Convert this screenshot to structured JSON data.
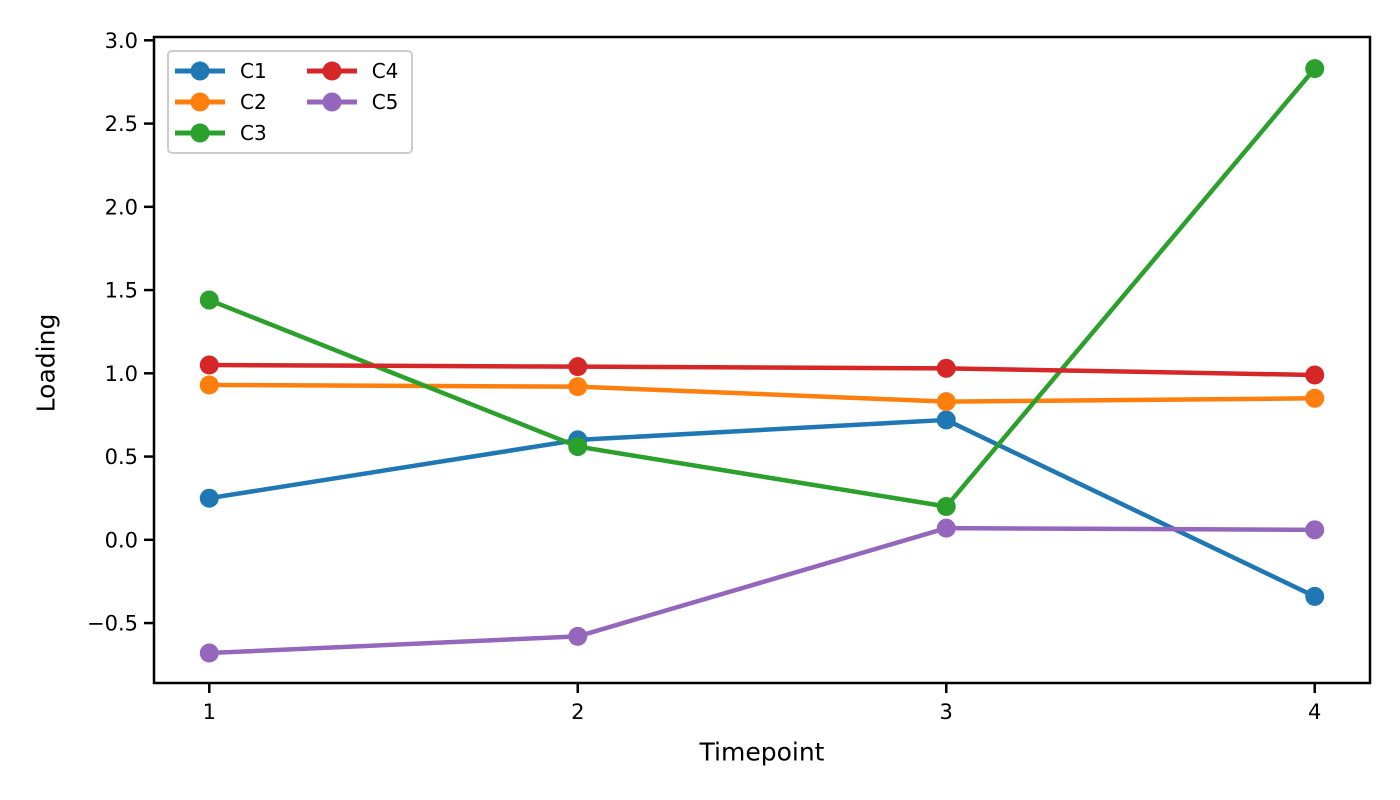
{
  "chart_data": {
    "type": "line",
    "title": "",
    "xlabel": "Timepoint",
    "ylabel": "Loading",
    "x": [
      1,
      2,
      3,
      4
    ],
    "xtick_values": [
      1,
      2,
      3,
      4
    ],
    "xtick_labels": [
      "1",
      "2",
      "3",
      "4"
    ],
    "ytick_values": [
      3.0,
      2.5,
      2.0,
      1.5,
      1.0,
      0.5,
      0.0,
      -0.5
    ],
    "ytick_labels": [
      "3.0",
      "2.5",
      "2.0",
      "1.5",
      "1.0",
      "0.5",
      "0.0",
      "−0.5"
    ],
    "xlim": [
      0.85,
      4.15
    ],
    "ylim": [
      -0.86,
      3.02
    ],
    "grid": false,
    "marker": "circle",
    "legend": {
      "position": "upper-left",
      "columns": 2,
      "fill_order": "column-major"
    },
    "series": [
      {
        "name": "C1",
        "color": "#1f77b4",
        "values": [
          0.25,
          0.6,
          0.72,
          -0.34
        ]
      },
      {
        "name": "C2",
        "color": "#ff7f0e",
        "values": [
          0.93,
          0.92,
          0.83,
          0.85
        ]
      },
      {
        "name": "C3",
        "color": "#2ca02c",
        "values": [
          1.44,
          0.56,
          0.2,
          2.83
        ]
      },
      {
        "name": "C4",
        "color": "#d62728",
        "values": [
          1.05,
          1.04,
          1.03,
          0.99
        ]
      },
      {
        "name": "C5",
        "color": "#9467bd",
        "values": [
          -0.68,
          -0.58,
          0.07,
          0.06
        ]
      }
    ]
  },
  "colors": {
    "background": "#ffffff",
    "text": "#000000",
    "spine": "#000000",
    "legend_border": "#cccccc"
  }
}
